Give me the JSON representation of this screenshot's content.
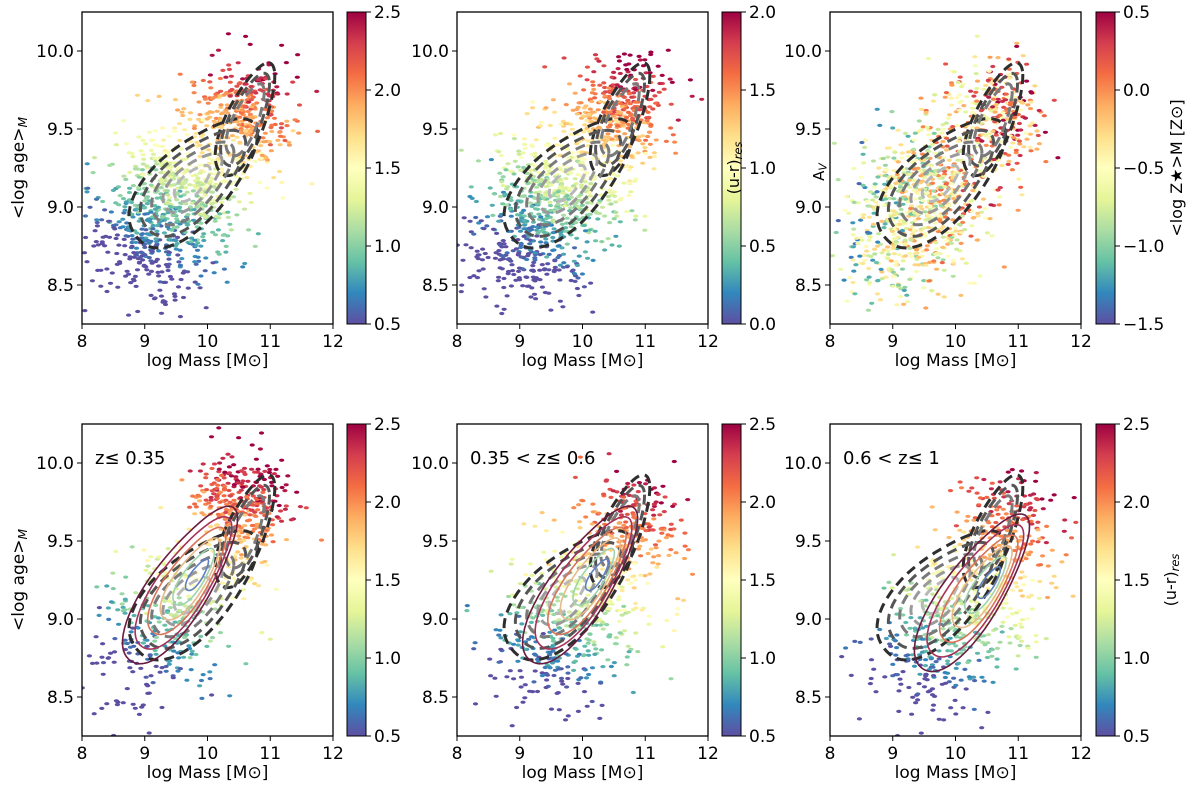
{
  "chart_data": [
    {
      "type": "scatter",
      "xlabel": "log Mass [M⊙]",
      "ylabel": "<log age>M",
      "xlim": [
        8,
        12
      ],
      "ylim": [
        8.25,
        10.25
      ],
      "xticks": [
        "8",
        "9",
        "10",
        "11",
        "12"
      ],
      "yticks": [
        "8.5",
        "9.0",
        "9.5",
        "10.0"
      ],
      "colorbar": {
        "label": "",
        "range": [
          0.5,
          2.5
        ],
        "ticks": [
          "0.5",
          "1.0",
          "1.5",
          "2.0",
          "2.5"
        ]
      },
      "annotation": "",
      "contours": "dashed grey (all galaxies)",
      "trend": "older and more massive galaxies have higher values (red); young low-mass galaxies low values (blue)"
    },
    {
      "type": "scatter",
      "xlabel": "log Mass [M⊙]",
      "ylabel": "",
      "xlim": [
        8,
        12
      ],
      "ylim": [
        8.25,
        10.25
      ],
      "xticks": [
        "8",
        "9",
        "10",
        "11",
        "12"
      ],
      "yticks": [
        "8.5",
        "9.0",
        "9.5",
        "10.0"
      ],
      "colorbar": {
        "label": "(u-r)res",
        "range": [
          0.0,
          2.0
        ],
        "ticks": [
          "0.0",
          "0.5",
          "1.0",
          "1.5",
          "2.0"
        ]
      },
      "annotation": "",
      "contours": "dashed grey (all galaxies)",
      "trend": "high values at high mass, low values at low mass and young ages"
    },
    {
      "type": "scatter",
      "xlabel": "log Mass [M⊙]",
      "ylabel": "AV",
      "xlim": [
        8,
        12
      ],
      "ylim": [
        8.25,
        10.25
      ],
      "xticks": [
        "8",
        "9",
        "10",
        "11",
        "12"
      ],
      "yticks": [
        "8.5",
        "9.0",
        "9.5",
        "10.0"
      ],
      "colorbar": {
        "label": "<log Z★>M [Z⊙]",
        "range": [
          -1.5,
          0.5
        ],
        "ticks": [
          "−1.5",
          "−1.0",
          "−0.5",
          "0.0",
          "0.5"
        ]
      },
      "annotation": "",
      "contours": "dashed grey (all galaxies)",
      "trend": "high metallicity at high mass; noisy mix at low mass"
    },
    {
      "type": "scatter",
      "xlabel": "log Mass [M⊙]",
      "ylabel": "<log age>M",
      "xlim": [
        8,
        12
      ],
      "ylim": [
        8.25,
        10.25
      ],
      "xticks": [
        "8",
        "9",
        "10",
        "11",
        "12"
      ],
      "yticks": [
        "8.5",
        "9.0",
        "9.5",
        "10.0"
      ],
      "colorbar": {
        "label": "",
        "range": [
          0.5,
          2.5
        ],
        "ticks": [
          "0.5",
          "1.0",
          "1.5",
          "2.0",
          "2.5"
        ]
      },
      "annotation": "z≤ 0.35",
      "contours": "dashed grey (all galaxies) + solid coloured (redshift bin)",
      "trend": "redshift bin extends to low masses"
    },
    {
      "type": "scatter",
      "xlabel": "log Mass [M⊙]",
      "ylabel": "",
      "xlim": [
        8,
        12
      ],
      "ylim": [
        8.25,
        10.25
      ],
      "xticks": [
        "8",
        "9",
        "10",
        "11",
        "12"
      ],
      "yticks": [
        "8.5",
        "9.0",
        "9.5",
        "10.0"
      ],
      "colorbar": {
        "label": "",
        "range": [
          0.5,
          2.5
        ],
        "ticks": [
          "0.5",
          "1.0",
          "1.5",
          "2.0",
          "2.5"
        ]
      },
      "annotation": "0.35 < z≤ 0.6",
      "contours": "dashed grey (all galaxies) + solid coloured (redshift bin)",
      "trend": "intermediate redshift bin"
    },
    {
      "type": "scatter",
      "xlabel": "log Mass [M⊙]",
      "ylabel": "",
      "xlim": [
        8,
        12
      ],
      "ylim": [
        8.25,
        10.25
      ],
      "xticks": [
        "8",
        "9",
        "10",
        "11",
        "12"
      ],
      "yticks": [
        "8.5",
        "9.0",
        "9.5",
        "10.0"
      ],
      "colorbar": {
        "label": "(u-r)res",
        "range": [
          0.5,
          2.5
        ],
        "ticks": [
          "0.5",
          "1.0",
          "1.5",
          "2.0",
          "2.5"
        ]
      },
      "annotation": "0.6 < z≤ 1",
      "contours": "dashed grey (all galaxies) + solid coloured (redshift bin)",
      "trend": "highest redshift bin shifted to higher masses"
    }
  ],
  "contour_colors": {
    "dashed": [
      "#2e2e2e",
      "#555555",
      "#7a7a7a",
      "#9a9a9a",
      "#b8b8b8"
    ],
    "solid": [
      "#6a1b3f",
      "#a6325b",
      "#d9735a",
      "#e8b98a",
      "#9fd3b0",
      "#5f7fc0"
    ]
  },
  "colormap": "Spectral_r"
}
